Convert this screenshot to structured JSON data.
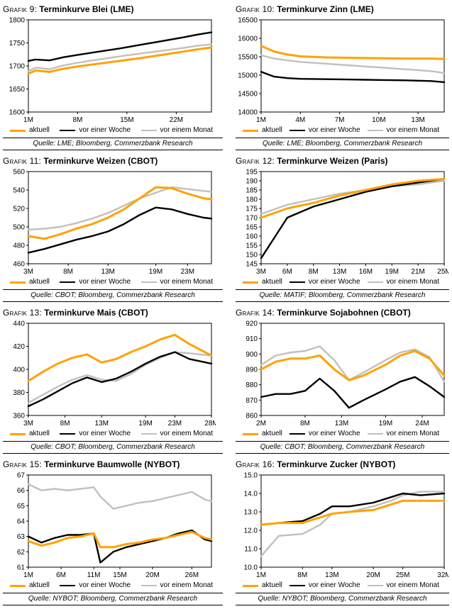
{
  "colors": {
    "aktuell": "#FFA200",
    "week": "#000000",
    "month": "#C0C0C0"
  },
  "legend": {
    "items": [
      {
        "key": "aktuell",
        "label": "aktuell"
      },
      {
        "key": "week",
        "label": "vor einer Woche"
      },
      {
        "key": "month",
        "label": "vor einem Monat"
      }
    ]
  },
  "chart_data": [
    {
      "label": "Grafik 9:",
      "title": "Terminkurve Blei (LME)",
      "source": "Quelle: LME; Bloomberg, Commerzbank Research",
      "type": "line",
      "grid": false,
      "legend_position": "bottom",
      "ylim": [
        1600,
        1800
      ],
      "yticks": [
        1600,
        1650,
        1700,
        1750,
        1800
      ],
      "ydecimals": 0,
      "xlim": [
        1,
        27
      ],
      "xticks": [
        1,
        8,
        15,
        22
      ],
      "xtick_labels": [
        "1M",
        "8M",
        "15M",
        "22M"
      ],
      "x": [
        1,
        2,
        4,
        6,
        8,
        11,
        14,
        17,
        20,
        23,
        25,
        27
      ],
      "series": [
        {
          "key": "aktuell",
          "name": "aktuell",
          "values": [
            1683,
            1690,
            1687,
            1694,
            1699,
            1705,
            1711,
            1717,
            1724,
            1731,
            1736,
            1740
          ]
        },
        {
          "key": "week",
          "name": "vor einer Woche",
          "values": [
            1711,
            1714,
            1712,
            1719,
            1724,
            1731,
            1738,
            1746,
            1754,
            1762,
            1768,
            1773
          ]
        },
        {
          "key": "month",
          "name": "vor einem Monat",
          "values": [
            1689,
            1696,
            1693,
            1701,
            1707,
            1714,
            1721,
            1727,
            1733,
            1739,
            1744,
            1747
          ]
        }
      ]
    },
    {
      "label": "Grafik 10:",
      "title": "Terminkurve Zinn (LME)",
      "source": "Quelle: LME; Bloomberg, Commerzbank Research",
      "type": "line",
      "grid": false,
      "legend_position": "bottom",
      "ylim": [
        14000,
        16500
      ],
      "yticks": [
        14000,
        14500,
        15000,
        15500,
        16000,
        16500
      ],
      "ydecimals": 0,
      "xlim": [
        1,
        15
      ],
      "xticks": [
        1,
        4,
        7,
        10,
        13
      ],
      "xtick_labels": [
        "1M",
        "4M",
        "7M",
        "10M",
        "13M"
      ],
      "x": [
        1,
        2,
        3,
        4,
        6,
        8,
        10,
        12,
        14,
        15
      ],
      "series": [
        {
          "key": "aktuell",
          "name": "aktuell",
          "values": [
            15790,
            15640,
            15560,
            15510,
            15480,
            15470,
            15460,
            15450,
            15450,
            15440
          ]
        },
        {
          "key": "week",
          "name": "vor einer Woche",
          "values": [
            15090,
            14960,
            14920,
            14900,
            14890,
            14880,
            14870,
            14860,
            14840,
            14810
          ]
        },
        {
          "key": "month",
          "name": "vor einem Monat",
          "values": [
            15540,
            15450,
            15400,
            15360,
            15310,
            15260,
            15210,
            15160,
            15110,
            15060
          ]
        }
      ]
    },
    {
      "label": "Grafik 11:",
      "title": "Terminkurve Weizen (CBOT)",
      "source": "Quelle: CBOT; Bloomberg, Commerzbank Research",
      "type": "line",
      "grid": false,
      "legend_position": "bottom",
      "ylim": [
        460,
        560
      ],
      "yticks": [
        460,
        480,
        500,
        520,
        540,
        560
      ],
      "ydecimals": 0,
      "xlim": [
        3,
        26
      ],
      "xticks": [
        3,
        8,
        13,
        19,
        23
      ],
      "xtick_labels": [
        "3M",
        "8M",
        "13M",
        "19M",
        "23M"
      ],
      "x": [
        3,
        5,
        7,
        9,
        11,
        13,
        15,
        17,
        19,
        21,
        23,
        25,
        26
      ],
      "series": [
        {
          "key": "aktuell",
          "name": "aktuell",
          "values": [
            490,
            487,
            492,
            498,
            503,
            510,
            519,
            531,
            543,
            542,
            536,
            531,
            530
          ]
        },
        {
          "key": "week",
          "name": "vor einer Woche",
          "values": [
            472,
            476,
            481,
            486,
            490,
            495,
            503,
            513,
            521,
            519,
            514,
            510,
            509
          ]
        },
        {
          "key": "month",
          "name": "vor einem Monat",
          "values": [
            497,
            498,
            500,
            504,
            509,
            515,
            523,
            531,
            537,
            543,
            541,
            539,
            538
          ]
        }
      ]
    },
    {
      "label": "Grafik 12:",
      "title": "Terminkurve Weizen (Paris)",
      "source": "Quelle: MATIF; Bloomberg, Commerzbank Research",
      "type": "line",
      "grid": false,
      "legend_position": "bottom",
      "ylim": [
        145,
        195
      ],
      "yticks": [
        145,
        150,
        155,
        160,
        165,
        170,
        175,
        180,
        185,
        190,
        195
      ],
      "ydecimals": 0,
      "xlim": [
        0,
        7
      ],
      "xticks": [
        0,
        1,
        2,
        3,
        4,
        5,
        6,
        7
      ],
      "xtick_labels": [
        "3M",
        "6M",
        "8M",
        "13M",
        "16M",
        "19M",
        "21M",
        "25M"
      ],
      "x": [
        0,
        1,
        2,
        3,
        4,
        5,
        6,
        7
      ],
      "series": [
        {
          "key": "aktuell",
          "name": "aktuell",
          "values": [
            170,
            175,
            178,
            182,
            185,
            188,
            190,
            191
          ]
        },
        {
          "key": "week",
          "name": "vor einer Woche",
          "values": [
            148,
            170,
            176,
            180,
            184,
            187,
            189,
            191
          ]
        },
        {
          "key": "month",
          "name": "vor einem Monat",
          "values": [
            172,
            177,
            180,
            183,
            185,
            187,
            188,
            190
          ]
        }
      ]
    },
    {
      "label": "Grafik 13:",
      "title": "Terminkurve Mais (CBOT)",
      "source": "Quelle: CBOT; Bloomberg, Commerzbank Research",
      "type": "line",
      "grid": false,
      "legend_position": "bottom",
      "ylim": [
        360,
        440
      ],
      "yticks": [
        360,
        380,
        400,
        420,
        440
      ],
      "ydecimals": 0,
      "xlim": [
        3,
        28
      ],
      "xticks": [
        3,
        8,
        13,
        19,
        23,
        28
      ],
      "xtick_labels": [
        "3M",
        "8M",
        "13M",
        "19M",
        "23M",
        "28M"
      ],
      "x": [
        3,
        5,
        7,
        9,
        11,
        13,
        15,
        17,
        19,
        21,
        23,
        25,
        28
      ],
      "series": [
        {
          "key": "aktuell",
          "name": "aktuell",
          "values": [
            390,
            398,
            405,
            410,
            413,
            406,
            409,
            415,
            420,
            426,
            430,
            422,
            412
          ]
        },
        {
          "key": "week",
          "name": "vor einer Woche",
          "values": [
            368,
            374,
            381,
            388,
            393,
            389,
            392,
            398,
            405,
            411,
            415,
            409,
            405
          ]
        },
        {
          "key": "month",
          "name": "vor einem Monat",
          "values": [
            371,
            378,
            385,
            391,
            395,
            391,
            390,
            396,
            404,
            410,
            415,
            414,
            412
          ]
        }
      ]
    },
    {
      "label": "Grafik 14:",
      "title": "Terminkurve Sojabohnen (CBOT)",
      "source": "Quelle: CBOT; Bloomberg, Commerzbank Research",
      "type": "line",
      "grid": false,
      "legend_position": "bottom",
      "ylim": [
        860,
        920
      ],
      "yticks": [
        860,
        870,
        880,
        890,
        900,
        910,
        920
      ],
      "ydecimals": 0,
      "xlim": [
        2,
        27
      ],
      "xticks": [
        2,
        8,
        13,
        19,
        24
      ],
      "xtick_labels": [
        "2M",
        "8M",
        "13M",
        "19M",
        "24M"
      ],
      "x": [
        2,
        4,
        6,
        8,
        10,
        12,
        14,
        16,
        19,
        21,
        23,
        25,
        27
      ],
      "series": [
        {
          "key": "aktuell",
          "name": "aktuell",
          "values": [
            890,
            895,
            897,
            897,
            899,
            890,
            883,
            886,
            893,
            899,
            902,
            897,
            886
          ]
        },
        {
          "key": "week",
          "name": "vor einer Woche",
          "values": [
            872,
            874,
            874,
            876,
            884,
            876,
            865,
            870,
            877,
            882,
            885,
            879,
            872
          ]
        },
        {
          "key": "month",
          "name": "vor einem Monat",
          "values": [
            893,
            899,
            901,
            902,
            905,
            896,
            883,
            888,
            896,
            901,
            903,
            898,
            882
          ]
        }
      ]
    },
    {
      "label": "Grafik 15:",
      "title": "Terminkurve Baumwolle (NYBOT)",
      "source": "Quelle: NYBOT; Bloomberg, Commerzbank Research",
      "type": "line",
      "grid": false,
      "legend_position": "bottom",
      "ylim": [
        61,
        67
      ],
      "yticks": [
        61,
        62,
        63,
        64,
        65,
        66,
        67
      ],
      "ydecimals": 0,
      "xlim": [
        1,
        29
      ],
      "xticks": [
        1,
        6,
        11,
        15,
        20,
        26
      ],
      "xtick_labels": [
        "1M",
        "6M",
        "11M",
        "15M",
        "20M",
        "26M"
      ],
      "x": [
        1,
        3,
        5,
        7,
        9,
        11,
        12,
        14,
        16,
        18,
        20,
        22,
        24,
        26,
        28,
        29
      ],
      "series": [
        {
          "key": "aktuell",
          "name": "aktuell",
          "values": [
            62.7,
            62.4,
            62.6,
            62.9,
            63.0,
            63.2,
            62.3,
            62.3,
            62.5,
            62.6,
            62.8,
            62.9,
            63.1,
            63.3,
            62.9,
            62.8
          ]
        },
        {
          "key": "week",
          "name": "vor einer Woche",
          "values": [
            63.0,
            62.6,
            62.9,
            63.1,
            63.1,
            63.2,
            61.3,
            62.0,
            62.3,
            62.5,
            62.7,
            62.9,
            63.2,
            63.4,
            62.8,
            62.7
          ]
        },
        {
          "key": "month",
          "name": "vor einem Monat",
          "values": [
            66.4,
            66.0,
            66.1,
            66.0,
            66.1,
            66.2,
            65.6,
            64.8,
            65.0,
            65.2,
            65.3,
            65.5,
            65.7,
            65.9,
            65.4,
            65.3
          ]
        }
      ]
    },
    {
      "label": "Grafik 16:",
      "title": "Terminkurve Zucker (NYBOT)",
      "source": "Quelle: NYBOT; Bloomberg, Commerzbank Research",
      "type": "line",
      "grid": false,
      "legend_position": "bottom",
      "ylim": [
        10.0,
        15.0
      ],
      "yticks": [
        10,
        11,
        12,
        13,
        14,
        15
      ],
      "ydecimals": 1,
      "xlim": [
        1,
        32
      ],
      "xticks": [
        1,
        8,
        13,
        20,
        25,
        32
      ],
      "xtick_labels": [
        "1M",
        "8M",
        "13M",
        "20M",
        "25M",
        "32M"
      ],
      "x": [
        1,
        4,
        8,
        11,
        13,
        16,
        20,
        23,
        25,
        28,
        32
      ],
      "series": [
        {
          "key": "aktuell",
          "name": "aktuell",
          "values": [
            12.3,
            12.4,
            12.4,
            12.7,
            12.9,
            13.0,
            13.1,
            13.4,
            13.6,
            13.6,
            13.6
          ]
        },
        {
          "key": "week",
          "name": "vor einer Woche",
          "values": [
            12.3,
            12.4,
            12.5,
            12.9,
            13.3,
            13.3,
            13.5,
            13.8,
            14.0,
            13.9,
            14.0
          ]
        },
        {
          "key": "month",
          "name": "vor einem Monat",
          "values": [
            10.6,
            11.7,
            11.8,
            12.3,
            12.9,
            13.0,
            13.3,
            13.6,
            13.9,
            14.1,
            14.1
          ]
        }
      ]
    }
  ]
}
